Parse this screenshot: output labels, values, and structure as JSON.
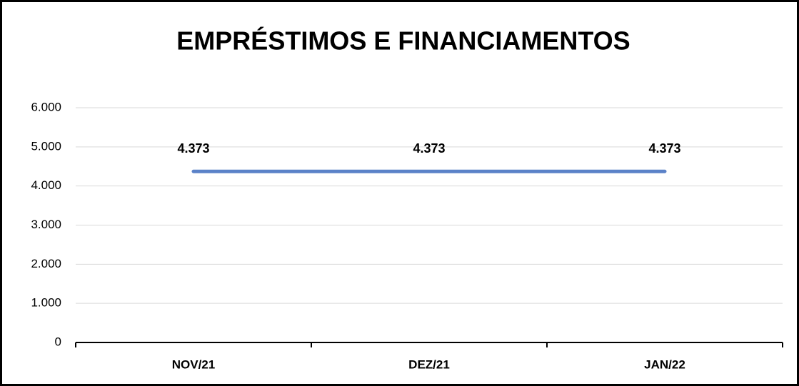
{
  "chart_data": {
    "type": "line",
    "title": "EMPRÉSTIMOS E FINANCIAMENTOS",
    "categories": [
      "NOV/21",
      "DEZ/21",
      "JAN/22"
    ],
    "values": [
      4373,
      4373,
      4373
    ],
    "value_labels": [
      "4.373",
      "4.373",
      "4.373"
    ],
    "color": "#5b82c8",
    "ylim": [
      0,
      6000
    ],
    "yticks": [
      0,
      {
        "value": 1000,
        "label": "1.000"
      },
      {
        "value": 2000,
        "label": "2.000"
      },
      {
        "value": 3000,
        "label": "3.000"
      },
      {
        "value": 4000,
        "label": "4.000"
      },
      {
        "value": 5000,
        "label": "5.000"
      },
      {
        "value": 6000,
        "label": "6.000"
      }
    ],
    "grid": true
  }
}
